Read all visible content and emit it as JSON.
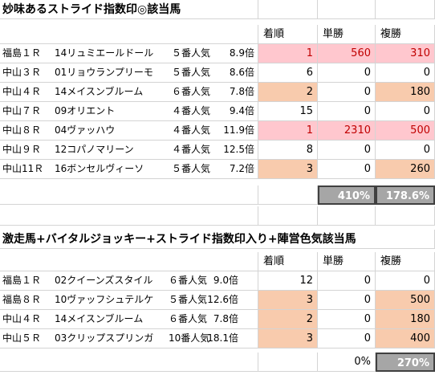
{
  "section1": {
    "title": "妙味あるストライド指数印◎該当馬",
    "headers": {
      "place": "着順",
      "win": "単勝",
      "show": "複勝"
    },
    "rows": [
      {
        "race": "福島１Ｒ",
        "horse": "14リュミエールドール",
        "pop": "５番人気",
        "odds": "8.9倍",
        "place": "1",
        "win": "560",
        "show": "310"
      },
      {
        "race": "中山３Ｒ",
        "horse": "01リョウランプリーモ",
        "pop": "５番人気",
        "odds": "8.6倍",
        "place": "6",
        "win": "0",
        "show": "0"
      },
      {
        "race": "中山４Ｒ",
        "horse": "14メイスンブルーム",
        "pop": "６番人気",
        "odds": "7.8倍",
        "place": "2",
        "win": "0",
        "show": "180"
      },
      {
        "race": "中山７Ｒ",
        "horse": "09オリエント",
        "pop": "４番人気",
        "odds": "9.4倍",
        "place": "15",
        "win": "0",
        "show": "0"
      },
      {
        "race": "中山８Ｒ",
        "horse": "04ヴァッハウ",
        "pop": "４番人気",
        "odds": "11.9倍",
        "place": "1",
        "win": "2310",
        "show": "500"
      },
      {
        "race": "中山９Ｒ",
        "horse": "12コパノマリーン",
        "pop": "４番人気",
        "odds": "12.5倍",
        "place": "8",
        "win": "0",
        "show": "0"
      },
      {
        "race": "中山11Ｒ",
        "horse": "16ボンセルヴィーソ",
        "pop": "５番人気",
        "odds": "7.2倍",
        "place": "3",
        "win": "0",
        "show": "260"
      }
    ],
    "totals": {
      "win": "410%",
      "show": "178.6%"
    }
  },
  "section2": {
    "title": "激走馬+バイタルジョッキー+ストライド指数印入り+陣営色気該当馬",
    "headers": {
      "place": "着順",
      "win": "単勝",
      "show": "複勝"
    },
    "rows": [
      {
        "race": "福島１Ｒ",
        "horse": "02クイーンズスタイル",
        "pop": "６番人気",
        "odds": "9.0倍",
        "place": "12",
        "win": "0",
        "show": "0"
      },
      {
        "race": "福島８Ｒ",
        "horse": "10ヴァッフシュテルケ",
        "pop": "５番人気",
        "odds": "12.6倍",
        "place": "3",
        "win": "0",
        "show": "500"
      },
      {
        "race": "中山４Ｒ",
        "horse": "14メイスンブルーム",
        "pop": "６番人気",
        "odds": "7.8倍",
        "place": "2",
        "win": "0",
        "show": "180"
      },
      {
        "race": "中山５Ｒ",
        "horse": "03クリップスプリンガ",
        "pop": "10番人気",
        "odds": "18.1倍",
        "place": "3",
        "win": "0",
        "show": "400"
      }
    ],
    "totals": {
      "win": "0%",
      "show": "270%"
    }
  },
  "colors": {
    "hit_win": "#ffc7ce",
    "hit_place": "#f8cbad",
    "total": "#a6a6a6"
  }
}
